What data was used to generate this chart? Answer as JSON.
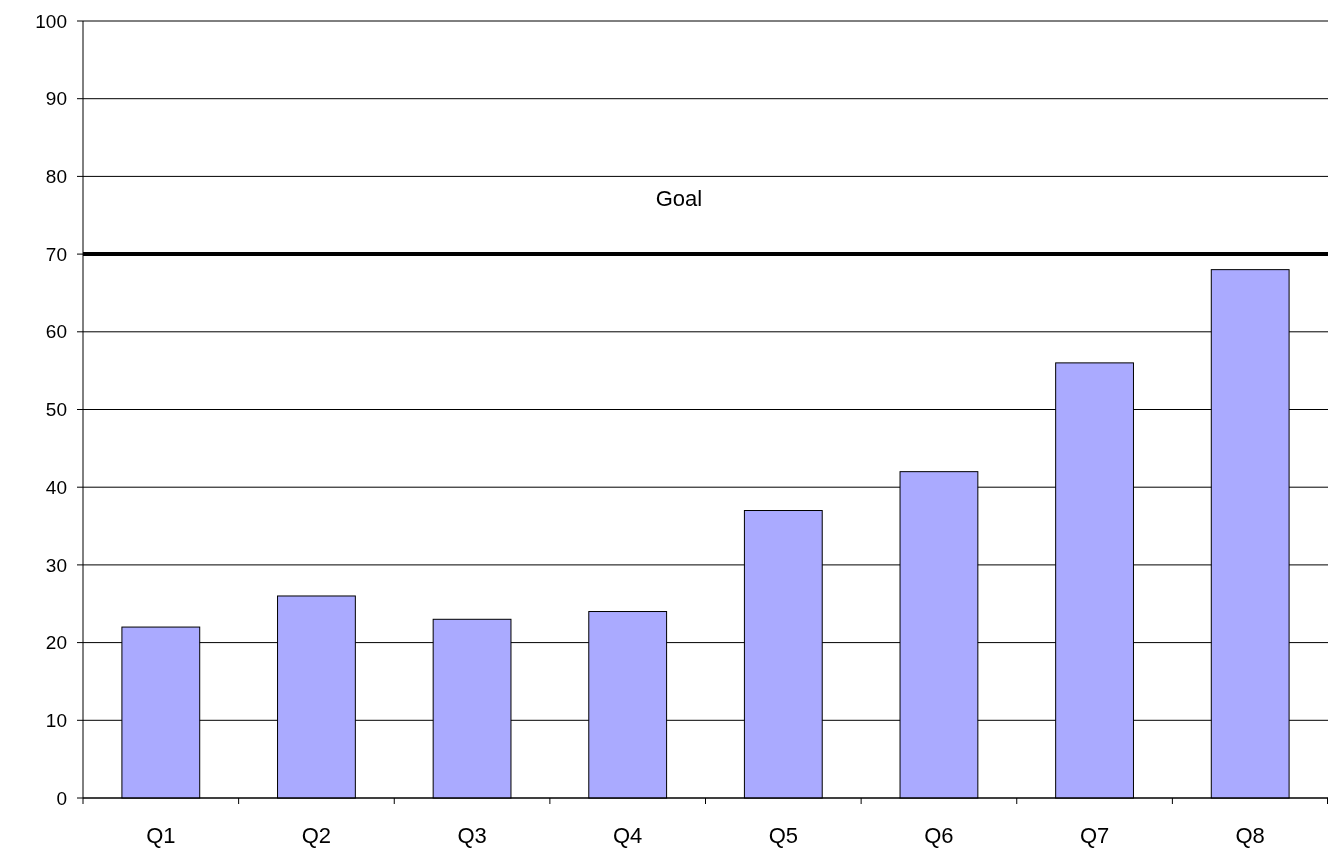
{
  "chart_data": {
    "type": "bar",
    "categories": [
      "Q1",
      "Q2",
      "Q3",
      "Q4",
      "Q5",
      "Q6",
      "Q7",
      "Q8"
    ],
    "values": [
      22,
      26,
      23,
      24,
      37,
      42,
      56,
      68
    ],
    "color": "#aaaaff",
    "ylim": [
      0,
      100
    ],
    "yticks": [
      0,
      10,
      20,
      30,
      40,
      50,
      60,
      70,
      80,
      90,
      100
    ],
    "grid": "y",
    "ref_lines": [
      {
        "axis": "y",
        "value": 70,
        "label": "Goal",
        "color": "#000000"
      }
    ]
  }
}
